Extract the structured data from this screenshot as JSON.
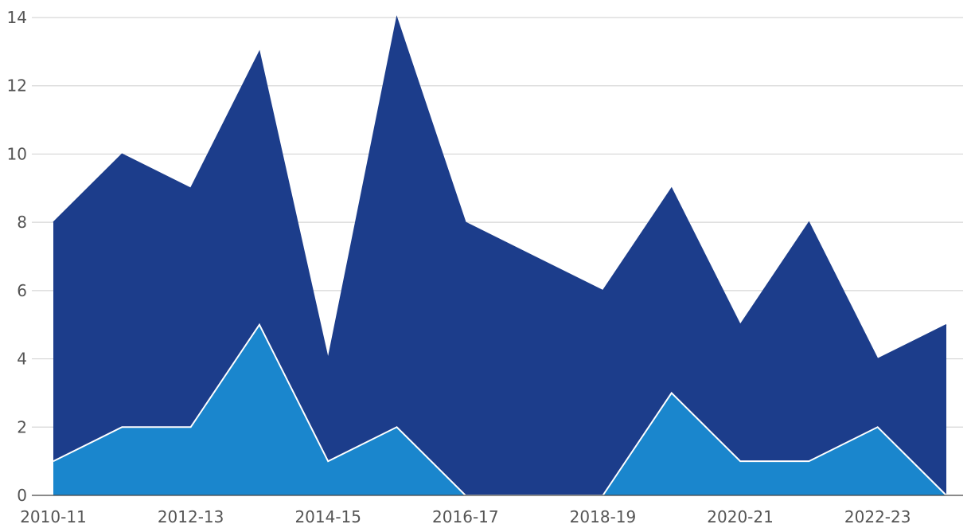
{
  "chart_data": {
    "type": "area",
    "x": [
      "2010-11",
      "2011-12",
      "2012-13",
      "2013-14",
      "2014-15",
      "2015-16",
      "2016-17",
      "2017-18",
      "2018-19",
      "2019-20",
      "2020-21",
      "2021-22",
      "2022-23",
      "2023-24"
    ],
    "x_tick_labels": [
      "2010-11",
      "2012-13",
      "2014-15",
      "2016-17",
      "2018-19",
      "2020-21",
      "2022-23"
    ],
    "series": [
      {
        "values": [
          8,
          10,
          9,
          13,
          4,
          14,
          8,
          7,
          6,
          9,
          5,
          8,
          4,
          5
        ],
        "color": "#1c3d8b"
      },
      {
        "values": [
          1,
          2,
          2,
          5,
          1,
          2,
          0,
          0,
          0,
          3,
          1,
          1,
          2,
          0
        ],
        "color": "#1b88cf"
      }
    ],
    "ylim": [
      0,
      14
    ],
    "y_ticks": [
      0,
      2,
      4,
      6,
      8,
      10,
      12,
      14
    ],
    "grid": true,
    "title": "",
    "xlabel": "",
    "ylabel": ""
  }
}
